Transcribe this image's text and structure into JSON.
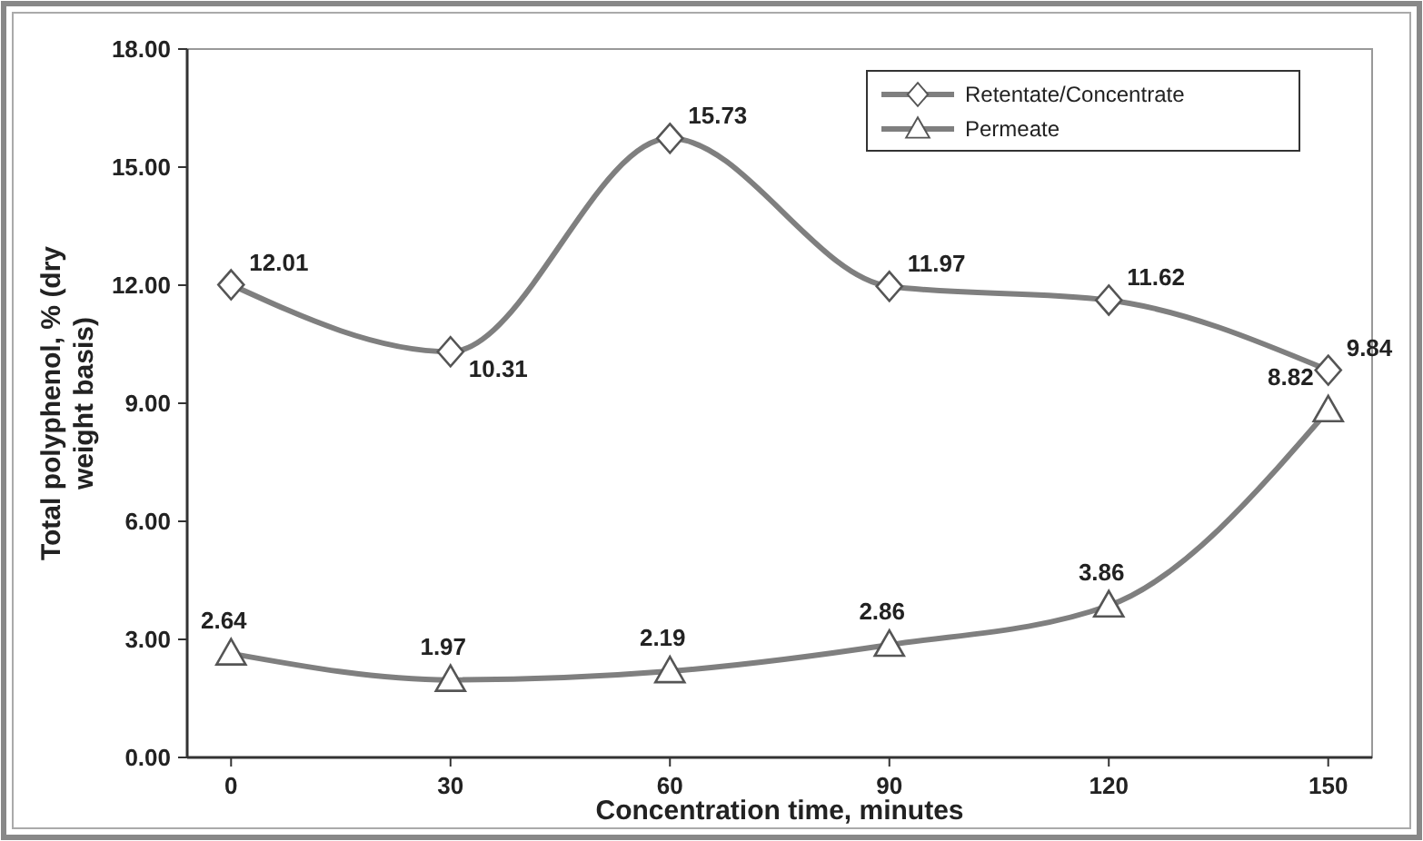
{
  "chart_data": {
    "type": "line",
    "xlabel": "Concentration time, minutes",
    "ylabel": "Total polyphenol, % (dry weight basis)",
    "x": [
      0,
      30,
      60,
      90,
      120,
      150
    ],
    "xlim": [
      -6,
      156
    ],
    "xticks": [
      0,
      30,
      60,
      90,
      120,
      150
    ],
    "ylim": [
      0,
      18
    ],
    "yticks": [
      {
        "value": 0,
        "label": "0.00"
      },
      {
        "value": 3,
        "label": "3.00"
      },
      {
        "value": 6,
        "label": "6.00"
      },
      {
        "value": 9,
        "label": "9.00"
      },
      {
        "value": 12,
        "label": "12.00"
      },
      {
        "value": 15,
        "label": "15.00"
      },
      {
        "value": 18,
        "label": "18.00"
      }
    ],
    "series": [
      {
        "name": "Retentate/Concentrate",
        "color": "#7f7f7f",
        "marker": "diamond",
        "values": [
          12.01,
          10.31,
          15.73,
          11.97,
          11.62,
          9.84
        ]
      },
      {
        "name": "Permeate",
        "color": "#7f7f7f",
        "marker": "triangle",
        "values": [
          2.64,
          1.97,
          2.19,
          2.86,
          3.86,
          8.82
        ]
      }
    ],
    "data_labels": true,
    "legend": "top right",
    "grid": false,
    "line_style": "solid"
  }
}
